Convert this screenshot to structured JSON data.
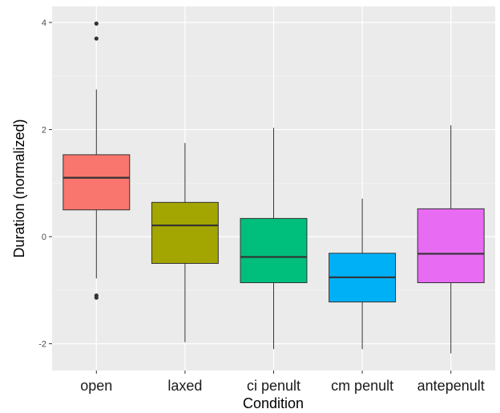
{
  "chart_data": {
    "type": "boxplot",
    "xlabel": "Condition",
    "ylabel": "Duration (normalized)",
    "ylim": [
      -2.5,
      4.3
    ],
    "yticks": [
      4,
      2,
      0,
      -2
    ],
    "grid": true,
    "background": "#ebebeb",
    "categories": [
      "open",
      "laxed",
      "ci penult",
      "cm penult",
      "antepenult"
    ],
    "boxes": [
      {
        "category": "open",
        "color": "#f8766d",
        "whisker_low": -0.78,
        "q1": 0.5,
        "median": 1.1,
        "q3": 1.53,
        "whisker_high": 2.75,
        "outliers": [
          3.98,
          3.7,
          -1.1,
          -1.14
        ]
      },
      {
        "category": "laxed",
        "color": "#a3a500",
        "whisker_low": -1.97,
        "q1": -0.5,
        "median": 0.21,
        "q3": 0.64,
        "whisker_high": 1.75,
        "outliers": []
      },
      {
        "category": "ci penult",
        "color": "#00bf7d",
        "whisker_low": -2.1,
        "q1": -0.86,
        "median": -0.38,
        "q3": 0.34,
        "whisker_high": 2.03,
        "outliers": []
      },
      {
        "category": "cm penult",
        "color": "#00b0f6",
        "whisker_low": -2.1,
        "q1": -1.22,
        "median": -0.76,
        "q3": -0.31,
        "whisker_high": 0.71,
        "outliers": []
      },
      {
        "category": "antepenult",
        "color": "#e76bf3",
        "whisker_low": -2.18,
        "q1": -0.86,
        "median": -0.32,
        "q3": 0.52,
        "whisker_high": 2.08,
        "outliers": []
      }
    ]
  }
}
